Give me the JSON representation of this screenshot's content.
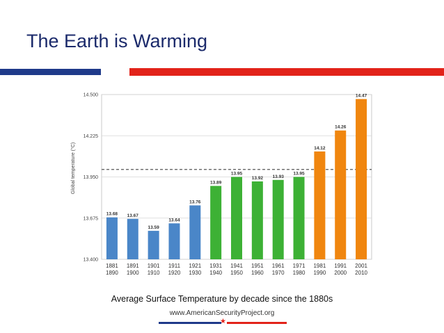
{
  "slide": {
    "title": "The Earth is Warming",
    "caption": "Average Surface Temperature by decade since the 1880s",
    "footer_url": "www.AmericanSecurityProject.org"
  },
  "colors": {
    "title": "#1b2a6b",
    "accent_blue": "#1f3a8a",
    "accent_red": "#e2231a",
    "bar_blue": "#4a86c8",
    "bar_green": "#3db135",
    "bar_orange": "#f0860f"
  },
  "chart_data": {
    "type": "bar",
    "title": "",
    "xlabel": "",
    "ylabel": "Global temperature (°C)",
    "ylim": [
      13.4,
      14.5
    ],
    "yticks": [
      "13.400",
      "13.675",
      "13.950",
      "14.225",
      "14.500"
    ],
    "ytick_values": [
      13.4,
      13.675,
      13.95,
      14.225,
      14.5
    ],
    "reference_line": 14.0,
    "categories": [
      [
        "1881",
        "1890"
      ],
      [
        "1891",
        "1900"
      ],
      [
        "1901",
        "1910"
      ],
      [
        "1911",
        "1920"
      ],
      [
        "1921",
        "1930"
      ],
      [
        "1931",
        "1940"
      ],
      [
        "1941",
        "1950"
      ],
      [
        "1951",
        "1960"
      ],
      [
        "1961",
        "1970"
      ],
      [
        "1971",
        "1980"
      ],
      [
        "1981",
        "1990"
      ],
      [
        "1991",
        "2000"
      ],
      [
        "2001",
        "2010"
      ]
    ],
    "values": [
      13.68,
      13.67,
      13.59,
      13.64,
      13.76,
      13.89,
      13.95,
      13.92,
      13.93,
      13.95,
      14.12,
      14.26,
      14.47
    ],
    "value_labels": [
      "13.68",
      "13.67",
      "13.59",
      "13.64",
      "13.76",
      "13.89",
      "13.95",
      "13.92",
      "13.93",
      "13.95",
      "14.12",
      "14.26",
      "14.47"
    ],
    "bar_colors": [
      "blue",
      "blue",
      "blue",
      "blue",
      "blue",
      "green",
      "green",
      "green",
      "green",
      "green",
      "orange",
      "orange",
      "orange"
    ]
  }
}
